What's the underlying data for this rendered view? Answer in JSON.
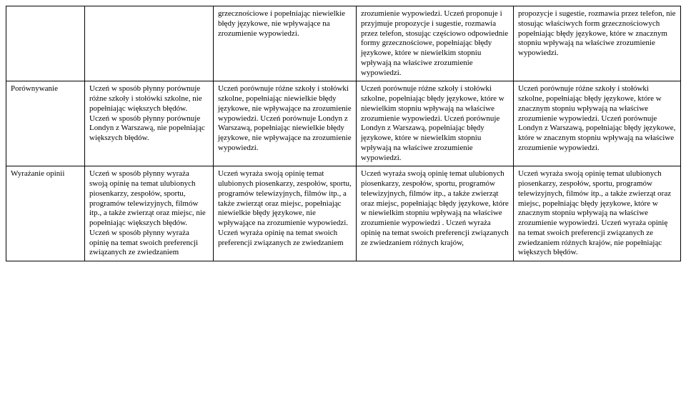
{
  "rows": [
    {
      "label": "",
      "c2": "",
      "c3": "grzecznościowe i popełniając niewielkie błędy językowe, nie wpływające na zrozumienie wypowiedzi.",
      "c4": "zrozumienie wypowiedzi. Uczeń proponuje i przyjmuje propozycje i sugestie, rozmawia przez telefon, stosując częściowo odpowiednie formy grzecznościowe, popełniając błędy językowe, które w niewielkim stopniu wpływają na właściwe zrozumienie wypowiedzi.",
      "c5": "propozycje i sugestie, rozmawia przez telefon, nie stosując właściwych form grzecznościowych popełniając błędy językowe, które w znacznym stopniu wpływają na właściwe zrozumienie wypowiedzi."
    },
    {
      "label": "Porównywanie",
      "c2": "Uczeń w sposób płynny porównuje różne szkoły i stołówki szkolne, nie popełniając większych błędów. Uczeń w sposób płynny porównuje Londyn z Warszawą, nie popełniając większych błędów.",
      "c3": "Uczeń porównuje różne szkoły i stołówki szkolne, popełniając niewielkie błędy językowe, nie wpływające na zrozumienie wypowiedzi. Uczeń porównuje Londyn z Warszawą, popełniając niewielkie błędy językowe, nie wpływające na zrozumienie wypowiedzi.",
      "c4": "Uczeń porównuje różne szkoły i stołówki szkolne, popełniając błędy językowe, które w niewielkim stopniu wpływają na właściwe zrozumienie wypowiedzi. Uczeń porównuje Londyn z Warszawą, popełniając błędy językowe, które w niewielkim stopniu wpływają na właściwe zrozumienie wypowiedzi.",
      "c5": "Uczeń porównuje różne szkoły i stołówki szkolne, popełniając błędy językowe, które w znacznym stopniu wpływają na właściwe zrozumienie wypowiedzi. Uczeń porównuje Londyn z Warszawą, popełniając błędy językowe, które w znacznym stopniu wpływają na właściwe zrozumienie wypowiedzi."
    },
    {
      "label": "Wyrażanie opinii",
      "c2": "Uczeń w sposób płynny wyraża swoją opinię na temat ulubionych piosenkarzy, zespołów, sportu, programów telewizyjnych, filmów itp., a także zwierząt oraz miejsc, nie popełniając większych błędów. Uczeń w sposób płynny wyraża opinię na temat swoich preferencji związanych ze zwiedzaniem",
      "c3": "Uczeń wyraża swoją opinię temat ulubionych piosenkarzy, zespołów, sportu, programów telewizyjnych, filmów itp., a także zwierząt oraz miejsc, popełniając niewielkie błędy językowe, nie wpływające na zrozumienie wypowiedzi. Uczeń wyraża opinię na temat swoich preferencji związanych ze zwiedzaniem",
      "c4": "Uczeń wyraża swoją opinię temat ulubionych piosenkarzy, zespołów, sportu, programów telewizyjnych, filmów itp., a także zwierząt oraz miejsc, popełniając błędy językowe, które w niewielkim stopniu wpływają na właściwe zrozumienie wypowiedzi . Uczeń wyraża opinię na temat swoich preferencji związanych ze zwiedzaniem różnych krajów,",
      "c5": "Uczeń wyraża swoją opinię temat ulubionych piosenkarzy, zespołów, sportu, programów telewizyjnych, filmów itp., a także zwierząt oraz miejsc, popełniając błędy językowe, które w znacznym stopniu wpływają na właściwe zrozumienie wypowiedzi. Uczeń wyraża opinię na temat swoich preferencji związanych ze zwiedzaniem różnych krajów, nie popełniając większych błędów."
    }
  ]
}
